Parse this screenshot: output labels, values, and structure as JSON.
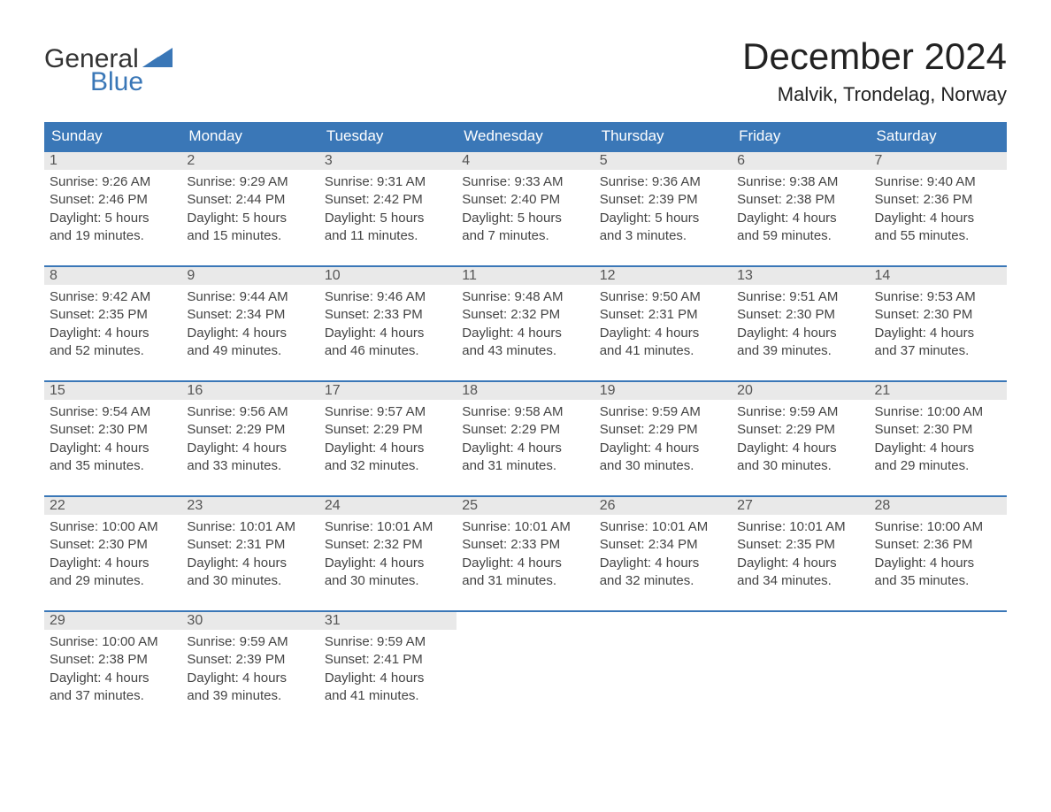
{
  "logo": {
    "text1": "General",
    "text2": "Blue",
    "triangle_color": "#3a77b7"
  },
  "title": "December 2024",
  "subtitle": "Malvik, Trondelag, Norway",
  "colors": {
    "header_bg": "#3a77b7",
    "header_text": "#ffffff",
    "week_border": "#3a77b7",
    "daynum_bg": "#e9e9e9",
    "text": "#2c2c2c",
    "page_bg": "#ffffff"
  },
  "weekdays": [
    "Sunday",
    "Monday",
    "Tuesday",
    "Wednesday",
    "Thursday",
    "Friday",
    "Saturday"
  ],
  "weeks": [
    [
      {
        "day": 1,
        "sunrise": "9:26 AM",
        "sunset": "2:46 PM",
        "daylight_l1": "5 hours",
        "daylight_l2": "and 19 minutes."
      },
      {
        "day": 2,
        "sunrise": "9:29 AM",
        "sunset": "2:44 PM",
        "daylight_l1": "5 hours",
        "daylight_l2": "and 15 minutes."
      },
      {
        "day": 3,
        "sunrise": "9:31 AM",
        "sunset": "2:42 PM",
        "daylight_l1": "5 hours",
        "daylight_l2": "and 11 minutes."
      },
      {
        "day": 4,
        "sunrise": "9:33 AM",
        "sunset": "2:40 PM",
        "daylight_l1": "5 hours",
        "daylight_l2": "and 7 minutes."
      },
      {
        "day": 5,
        "sunrise": "9:36 AM",
        "sunset": "2:39 PM",
        "daylight_l1": "5 hours",
        "daylight_l2": "and 3 minutes."
      },
      {
        "day": 6,
        "sunrise": "9:38 AM",
        "sunset": "2:38 PM",
        "daylight_l1": "4 hours",
        "daylight_l2": "and 59 minutes."
      },
      {
        "day": 7,
        "sunrise": "9:40 AM",
        "sunset": "2:36 PM",
        "daylight_l1": "4 hours",
        "daylight_l2": "and 55 minutes."
      }
    ],
    [
      {
        "day": 8,
        "sunrise": "9:42 AM",
        "sunset": "2:35 PM",
        "daylight_l1": "4 hours",
        "daylight_l2": "and 52 minutes."
      },
      {
        "day": 9,
        "sunrise": "9:44 AM",
        "sunset": "2:34 PM",
        "daylight_l1": "4 hours",
        "daylight_l2": "and 49 minutes."
      },
      {
        "day": 10,
        "sunrise": "9:46 AM",
        "sunset": "2:33 PM",
        "daylight_l1": "4 hours",
        "daylight_l2": "and 46 minutes."
      },
      {
        "day": 11,
        "sunrise": "9:48 AM",
        "sunset": "2:32 PM",
        "daylight_l1": "4 hours",
        "daylight_l2": "and 43 minutes."
      },
      {
        "day": 12,
        "sunrise": "9:50 AM",
        "sunset": "2:31 PM",
        "daylight_l1": "4 hours",
        "daylight_l2": "and 41 minutes."
      },
      {
        "day": 13,
        "sunrise": "9:51 AM",
        "sunset": "2:30 PM",
        "daylight_l1": "4 hours",
        "daylight_l2": "and 39 minutes."
      },
      {
        "day": 14,
        "sunrise": "9:53 AM",
        "sunset": "2:30 PM",
        "daylight_l1": "4 hours",
        "daylight_l2": "and 37 minutes."
      }
    ],
    [
      {
        "day": 15,
        "sunrise": "9:54 AM",
        "sunset": "2:30 PM",
        "daylight_l1": "4 hours",
        "daylight_l2": "and 35 minutes."
      },
      {
        "day": 16,
        "sunrise": "9:56 AM",
        "sunset": "2:29 PM",
        "daylight_l1": "4 hours",
        "daylight_l2": "and 33 minutes."
      },
      {
        "day": 17,
        "sunrise": "9:57 AM",
        "sunset": "2:29 PM",
        "daylight_l1": "4 hours",
        "daylight_l2": "and 32 minutes."
      },
      {
        "day": 18,
        "sunrise": "9:58 AM",
        "sunset": "2:29 PM",
        "daylight_l1": "4 hours",
        "daylight_l2": "and 31 minutes."
      },
      {
        "day": 19,
        "sunrise": "9:59 AM",
        "sunset": "2:29 PM",
        "daylight_l1": "4 hours",
        "daylight_l2": "and 30 minutes."
      },
      {
        "day": 20,
        "sunrise": "9:59 AM",
        "sunset": "2:29 PM",
        "daylight_l1": "4 hours",
        "daylight_l2": "and 30 minutes."
      },
      {
        "day": 21,
        "sunrise": "10:00 AM",
        "sunset": "2:30 PM",
        "daylight_l1": "4 hours",
        "daylight_l2": "and 29 minutes."
      }
    ],
    [
      {
        "day": 22,
        "sunrise": "10:00 AM",
        "sunset": "2:30 PM",
        "daylight_l1": "4 hours",
        "daylight_l2": "and 29 minutes."
      },
      {
        "day": 23,
        "sunrise": "10:01 AM",
        "sunset": "2:31 PM",
        "daylight_l1": "4 hours",
        "daylight_l2": "and 30 minutes."
      },
      {
        "day": 24,
        "sunrise": "10:01 AM",
        "sunset": "2:32 PM",
        "daylight_l1": "4 hours",
        "daylight_l2": "and 30 minutes."
      },
      {
        "day": 25,
        "sunrise": "10:01 AM",
        "sunset": "2:33 PM",
        "daylight_l1": "4 hours",
        "daylight_l2": "and 31 minutes."
      },
      {
        "day": 26,
        "sunrise": "10:01 AM",
        "sunset": "2:34 PM",
        "daylight_l1": "4 hours",
        "daylight_l2": "and 32 minutes."
      },
      {
        "day": 27,
        "sunrise": "10:01 AM",
        "sunset": "2:35 PM",
        "daylight_l1": "4 hours",
        "daylight_l2": "and 34 minutes."
      },
      {
        "day": 28,
        "sunrise": "10:00 AM",
        "sunset": "2:36 PM",
        "daylight_l1": "4 hours",
        "daylight_l2": "and 35 minutes."
      }
    ],
    [
      {
        "day": 29,
        "sunrise": "10:00 AM",
        "sunset": "2:38 PM",
        "daylight_l1": "4 hours",
        "daylight_l2": "and 37 minutes."
      },
      {
        "day": 30,
        "sunrise": "9:59 AM",
        "sunset": "2:39 PM",
        "daylight_l1": "4 hours",
        "daylight_l2": "and 39 minutes."
      },
      {
        "day": 31,
        "sunrise": "9:59 AM",
        "sunset": "2:41 PM",
        "daylight_l1": "4 hours",
        "daylight_l2": "and 41 minutes."
      },
      null,
      null,
      null,
      null
    ]
  ],
  "labels": {
    "sunrise_prefix": "Sunrise: ",
    "sunset_prefix": "Sunset: ",
    "daylight_prefix": "Daylight: "
  }
}
